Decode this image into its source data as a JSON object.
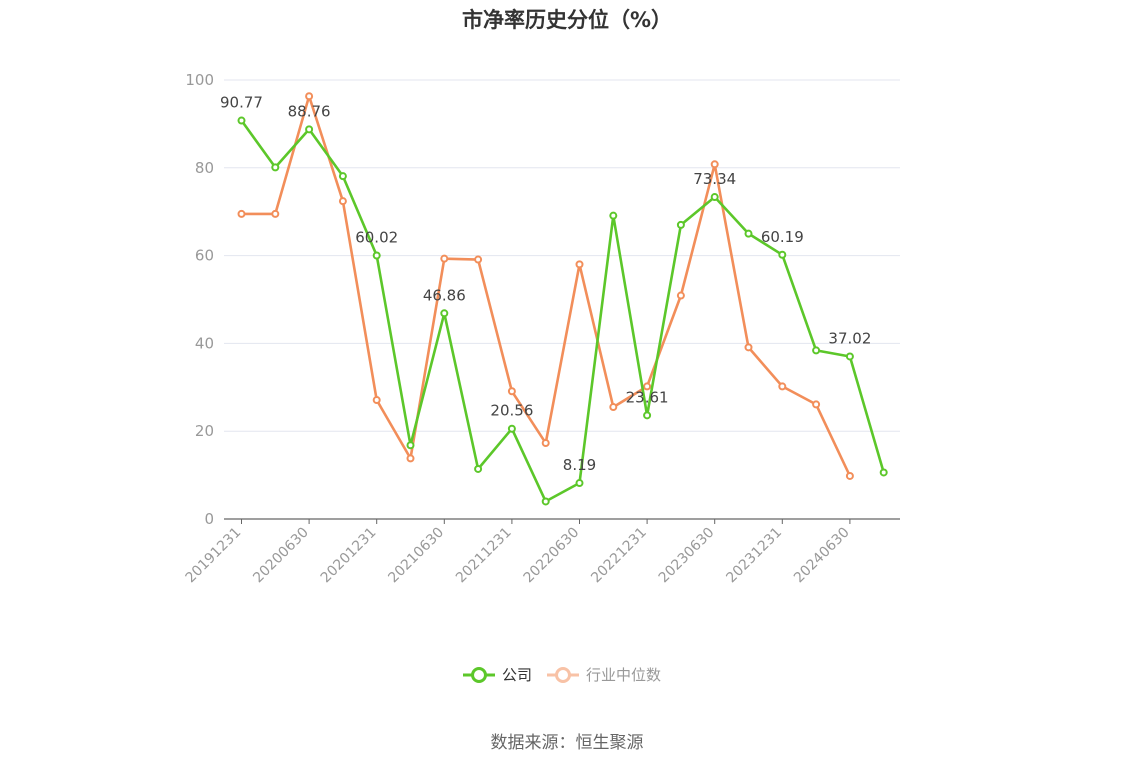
{
  "chart_data": {
    "type": "line",
    "title": "市净率历史分位（%）",
    "xlabel": "",
    "ylabel": "",
    "ylim": [
      0,
      100
    ],
    "yticks": [
      0,
      20,
      40,
      60,
      80,
      100
    ],
    "x": [
      "20191231",
      "20200331",
      "20200630",
      "20200930",
      "20201231",
      "20210331",
      "20210630",
      "20210930",
      "20211231",
      "20220331",
      "20220630",
      "20220930",
      "20221231",
      "20230331",
      "20230630",
      "20230930",
      "20231231",
      "20240331",
      "20240630",
      "20240930"
    ],
    "xtick_labels": [
      "20191231",
      "20200630",
      "20201231",
      "20210630",
      "20211231",
      "20220630",
      "20221231",
      "20230630",
      "20231231",
      "20240630"
    ],
    "series": [
      {
        "name": "公司",
        "color": "#5cc72a",
        "values": [
          90.77,
          80.1,
          88.76,
          78.1,
          60.02,
          16.8,
          46.86,
          11.4,
          20.56,
          4.0,
          8.19,
          69.1,
          23.61,
          67.0,
          73.34,
          65.0,
          60.19,
          38.4,
          37.02,
          10.6
        ],
        "labels": {
          "0": "90.77",
          "2": "88.76",
          "4": "60.02",
          "6": "46.86",
          "8": "20.56",
          "10": "8.19",
          "12": "23.61",
          "14": "73.34",
          "16": "60.19",
          "18": "37.02"
        }
      },
      {
        "name": "行业中位数",
        "color": "#f28e5a",
        "values": [
          69.5,
          69.5,
          96.3,
          72.4,
          27.1,
          13.8,
          59.3,
          59.1,
          29.1,
          17.3,
          58.0,
          25.5,
          30.2,
          50.9,
          80.8,
          39.1,
          30.2,
          26.1,
          9.8,
          null
        ]
      }
    ],
    "legend_position": "bottom-center",
    "grid": true
  },
  "source": "数据来源：恒生聚源"
}
